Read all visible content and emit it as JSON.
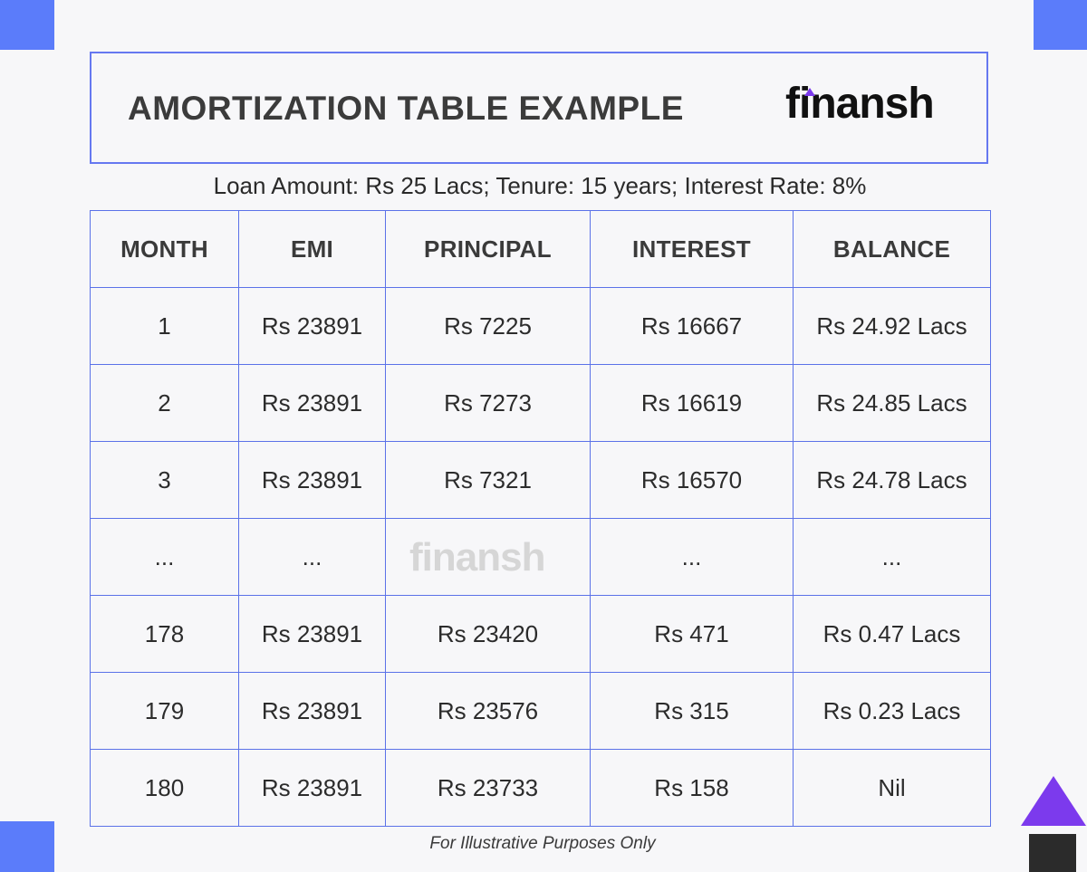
{
  "title": "AMORTIZATION TABLE EXAMPLE",
  "brand": "finansh",
  "watermark": "finansh",
  "subtitle": "Loan Amount: Rs 25 Lacs; Tenure: 15 years; Interest Rate: 8%",
  "table": {
    "headers": [
      "MONTH",
      "EMI",
      "PRINCIPAL",
      "INTEREST",
      "BALANCE"
    ],
    "rows": [
      [
        "1",
        "Rs 23891",
        "Rs 7225",
        "Rs 16667",
        "Rs 24.92 Lacs"
      ],
      [
        "2",
        "Rs 23891",
        "Rs 7273",
        "Rs 16619",
        "Rs 24.85 Lacs"
      ],
      [
        "3",
        "Rs 23891",
        "Rs 7321",
        "Rs 16570",
        "Rs 24.78 Lacs"
      ],
      [
        "...",
        "...",
        "",
        "...",
        "..."
      ],
      [
        "178",
        "Rs 23891",
        "Rs 23420",
        "Rs 471",
        "Rs 0.47 Lacs"
      ],
      [
        "179",
        "Rs 23891",
        "Rs 23576",
        "Rs 315",
        "Rs 0.23 Lacs"
      ],
      [
        "180",
        "Rs 23891",
        "Rs 23733",
        "Rs 158",
        "Nil"
      ]
    ]
  },
  "footnote": "For Illustrative Purposes Only",
  "colors": {
    "accent_blue": "#5b7cfa",
    "accent_purple": "#7c3aed",
    "border": "#5b72e8"
  }
}
